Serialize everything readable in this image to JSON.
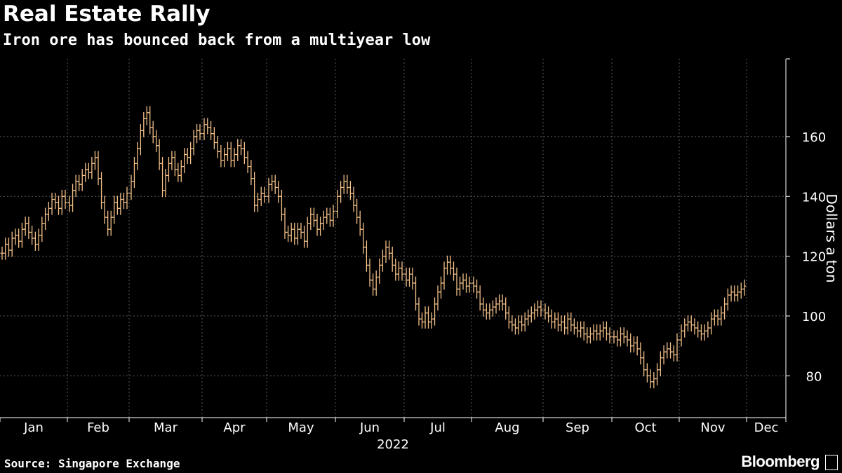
{
  "title": "Real Estate Rally",
  "subtitle": "Iron ore has bounced back from a multiyear low",
  "source": "Source: Singapore Exchange",
  "brand": "Bloomberg",
  "brand_icon": "bloomberg-terminal-icon",
  "colors": {
    "background": "#000000",
    "series": "#f5c28a",
    "grid": "#5a5a5a",
    "text": "#ffffff"
  },
  "chart_data": {
    "type": "ohlc",
    "title": "Real Estate Rally",
    "subtitle": "Iron ore has bounced back from a multiyear low",
    "xlabel": "2022",
    "ylabel": "Dollars a ton",
    "ylim": [
      66,
      186
    ],
    "yticks": [
      80,
      100,
      120,
      140,
      160
    ],
    "xticks": [
      "Jan",
      "Feb",
      "Mar",
      "Apr",
      "May",
      "Jun",
      "Jul",
      "Aug",
      "Sep",
      "Oct",
      "Nov",
      "Dec"
    ],
    "x_year_label": "2022",
    "grid": true,
    "legend": "none",
    "series": [
      {
        "values_note_free": true,
        "points": [
          [
            "Jan",
            121
          ],
          [
            "Jan",
            124
          ],
          [
            "Jan",
            122
          ],
          [
            "Jan",
            126
          ],
          [
            "Jan",
            127
          ],
          [
            "Jan",
            125
          ],
          [
            "Jan",
            129
          ],
          [
            "Jan",
            131
          ],
          [
            "Jan",
            128
          ],
          [
            "Jan",
            126
          ],
          [
            "Jan",
            124
          ],
          [
            "Jan",
            127
          ],
          [
            "Jan",
            131
          ],
          [
            "Jan",
            134
          ],
          [
            "Jan",
            136
          ],
          [
            "Jan",
            139
          ],
          [
            "Jan",
            138
          ],
          [
            "Jan",
            136
          ],
          [
            "Jan",
            140
          ],
          [
            "Jan",
            138
          ],
          [
            "Feb",
            137
          ],
          [
            "Feb",
            142
          ],
          [
            "Feb",
            145
          ],
          [
            "Feb",
            144
          ],
          [
            "Feb",
            147
          ],
          [
            "Feb",
            149
          ],
          [
            "Feb",
            148
          ],
          [
            "Feb",
            151
          ],
          [
            "Feb",
            153
          ],
          [
            "Feb",
            146
          ],
          [
            "Feb",
            138
          ],
          [
            "Feb",
            133
          ],
          [
            "Feb",
            129
          ],
          [
            "Feb",
            133
          ],
          [
            "Feb",
            138
          ],
          [
            "Feb",
            136
          ],
          [
            "Feb",
            139
          ],
          [
            "Feb",
            138
          ],
          [
            "Feb",
            141
          ],
          [
            "Mar",
            145
          ],
          [
            "Mar",
            151
          ],
          [
            "Mar",
            156
          ],
          [
            "Mar",
            162
          ],
          [
            "Mar",
            166
          ],
          [
            "Mar",
            168
          ],
          [
            "Mar",
            163
          ],
          [
            "Mar",
            160
          ],
          [
            "Mar",
            157
          ],
          [
            "Mar",
            151
          ],
          [
            "Mar",
            142
          ],
          [
            "Mar",
            147
          ],
          [
            "Mar",
            151
          ],
          [
            "Mar",
            153
          ],
          [
            "Mar",
            149
          ],
          [
            "Mar",
            147
          ],
          [
            "Mar",
            150
          ],
          [
            "Mar",
            154
          ],
          [
            "Mar",
            153
          ],
          [
            "Mar",
            156
          ],
          [
            "Mar",
            160
          ],
          [
            "Mar",
            162
          ],
          [
            "Mar",
            161
          ],
          [
            "Apr",
            164
          ],
          [
            "Apr",
            163
          ],
          [
            "Apr",
            161
          ],
          [
            "Apr",
            158
          ],
          [
            "Apr",
            155
          ],
          [
            "Apr",
            152
          ],
          [
            "Apr",
            154
          ],
          [
            "Apr",
            156
          ],
          [
            "Apr",
            152
          ],
          [
            "Apr",
            154
          ],
          [
            "Apr",
            157
          ],
          [
            "Apr",
            156
          ],
          [
            "Apr",
            153
          ],
          [
            "Apr",
            150
          ],
          [
            "Apr",
            146
          ],
          [
            "Apr",
            137
          ],
          [
            "Apr",
            139
          ],
          [
            "Apr",
            141
          ],
          [
            "Apr",
            140
          ],
          [
            "May",
            144
          ],
          [
            "May",
            145
          ],
          [
            "May",
            143
          ],
          [
            "May",
            140
          ],
          [
            "May",
            134
          ],
          [
            "May",
            128
          ],
          [
            "May",
            127
          ],
          [
            "May",
            129
          ],
          [
            "May",
            126
          ],
          [
            "May",
            129
          ],
          [
            "May",
            128
          ],
          [
            "May",
            125
          ],
          [
            "May",
            131
          ],
          [
            "May",
            134
          ],
          [
            "May",
            132
          ],
          [
            "May",
            129
          ],
          [
            "May",
            131
          ],
          [
            "May",
            133
          ],
          [
            "May",
            134
          ],
          [
            "May",
            132
          ],
          [
            "May",
            135
          ],
          [
            "Jun",
            140
          ],
          [
            "Jun",
            143
          ],
          [
            "Jun",
            145
          ],
          [
            "Jun",
            143
          ],
          [
            "Jun",
            141
          ],
          [
            "Jun",
            137
          ],
          [
            "Jun",
            133
          ],
          [
            "Jun",
            129
          ],
          [
            "Jun",
            123
          ],
          [
            "Jun",
            117
          ],
          [
            "Jun",
            112
          ],
          [
            "Jun",
            109
          ],
          [
            "Jun",
            113
          ],
          [
            "Jun",
            117
          ],
          [
            "Jun",
            120
          ],
          [
            "Jun",
            123
          ],
          [
            "Jun",
            121
          ],
          [
            "Jun",
            117
          ],
          [
            "Jun",
            114
          ],
          [
            "Jun",
            116
          ],
          [
            "Jun",
            114
          ],
          [
            "Jul",
            112
          ],
          [
            "Jul",
            114
          ],
          [
            "Jul",
            111
          ],
          [
            "Jul",
            104
          ],
          [
            "Jul",
            99
          ],
          [
            "Jul",
            98
          ],
          [
            "Jul",
            101
          ],
          [
            "Jul",
            98
          ],
          [
            "Jul",
            99
          ],
          [
            "Jul",
            104
          ],
          [
            "Jul",
            108
          ],
          [
            "Jul",
            111
          ],
          [
            "Jul",
            116
          ],
          [
            "Jul",
            118
          ],
          [
            "Jul",
            116
          ],
          [
            "Jul",
            114
          ],
          [
            "Jul",
            109
          ],
          [
            "Jul",
            111
          ],
          [
            "Jul",
            112
          ],
          [
            "Jul",
            110
          ],
          [
            "Jul",
            111
          ],
          [
            "Aug",
            110
          ],
          [
            "Aug",
            108
          ],
          [
            "Aug",
            104
          ],
          [
            "Aug",
            102
          ],
          [
            "Aug",
            101
          ],
          [
            "Aug",
            102
          ],
          [
            "Aug",
            103
          ],
          [
            "Aug",
            104
          ],
          [
            "Aug",
            105
          ],
          [
            "Aug",
            104
          ],
          [
            "Aug",
            101
          ],
          [
            "Aug",
            98
          ],
          [
            "Aug",
            97
          ],
          [
            "Aug",
            96
          ],
          [
            "Aug",
            98
          ],
          [
            "Aug",
            97
          ],
          [
            "Aug",
            99
          ],
          [
            "Aug",
            100
          ],
          [
            "Aug",
            101
          ],
          [
            "Aug",
            102
          ],
          [
            "Aug",
            103
          ],
          [
            "Aug",
            102
          ],
          [
            "Sep",
            101
          ],
          [
            "Sep",
            100
          ],
          [
            "Sep",
            98
          ],
          [
            "Sep",
            99
          ],
          [
            "Sep",
            97
          ],
          [
            "Sep",
            98
          ],
          [
            "Sep",
            96
          ],
          [
            "Sep",
            99
          ],
          [
            "Sep",
            97
          ],
          [
            "Sep",
            96
          ],
          [
            "Sep",
            95
          ],
          [
            "Sep",
            96
          ],
          [
            "Sep",
            94
          ],
          [
            "Sep",
            93
          ],
          [
            "Sep",
            94
          ],
          [
            "Sep",
            95
          ],
          [
            "Sep",
            94
          ],
          [
            "Sep",
            95
          ],
          [
            "Sep",
            96
          ],
          [
            "Sep",
            94
          ],
          [
            "Sep",
            93
          ],
          [
            "Oct",
            93
          ],
          [
            "Oct",
            92
          ],
          [
            "Oct",
            94
          ],
          [
            "Oct",
            93
          ],
          [
            "Oct",
            92
          ],
          [
            "Oct",
            90
          ],
          [
            "Oct",
            91
          ],
          [
            "Oct",
            89
          ],
          [
            "Oct",
            86
          ],
          [
            "Oct",
            82
          ],
          [
            "Oct",
            80
          ],
          [
            "Oct",
            78
          ],
          [
            "Oct",
            79
          ],
          [
            "Oct",
            82
          ],
          [
            "Oct",
            86
          ],
          [
            "Oct",
            88
          ],
          [
            "Oct",
            89
          ],
          [
            "Oct",
            88
          ],
          [
            "Oct",
            87
          ],
          [
            "Oct",
            92
          ],
          [
            "Nov",
            95
          ],
          [
            "Nov",
            97
          ],
          [
            "Nov",
            98
          ],
          [
            "Nov",
            97
          ],
          [
            "Nov",
            96
          ],
          [
            "Nov",
            95
          ],
          [
            "Nov",
            94
          ],
          [
            "Nov",
            95
          ],
          [
            "Nov",
            96
          ],
          [
            "Nov",
            99
          ],
          [
            "Nov",
            100
          ],
          [
            "Nov",
            99
          ],
          [
            "Nov",
            101
          ],
          [
            "Nov",
            104
          ],
          [
            "Nov",
            107
          ],
          [
            "Nov",
            108
          ],
          [
            "Nov",
            107
          ],
          [
            "Nov",
            108
          ],
          [
            "Nov",
            109
          ],
          [
            "Nov",
            110
          ]
        ]
      }
    ]
  }
}
